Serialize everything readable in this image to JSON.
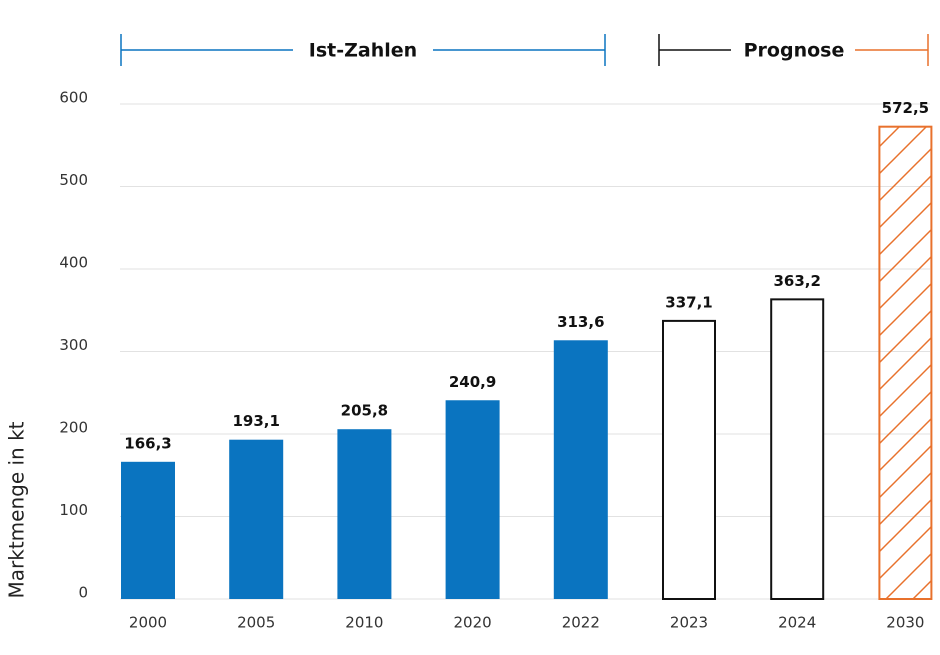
{
  "chart_data": {
    "type": "bar",
    "ylabel": "Marktmenge in kt",
    "annotations": [
      "Ist-Zahlen",
      "Prognose"
    ],
    "categories": [
      "2000",
      "2005",
      "2010",
      "2020",
      "2022",
      "2023",
      "2024",
      "2030"
    ],
    "values": [
      166.3,
      193.1,
      205.8,
      240.9,
      313.6,
      337.1,
      363.2,
      572.5
    ],
    "value_labels": [
      "166,3",
      "193,1",
      "205,8",
      "240,9",
      "313,6",
      "337,1",
      "363,2",
      "572,5"
    ],
    "colors": [
      "#0a74c0",
      "#0a74c0",
      "#0a74c0",
      "#0a74c0",
      "#0a74c0",
      "#111111",
      "#111111",
      "#e8712c"
    ],
    "styles": [
      "solid",
      "solid",
      "solid",
      "solid",
      "solid",
      "outline",
      "outline",
      "hatched"
    ],
    "ylim": [
      0,
      600
    ],
    "yticks": [
      0,
      100,
      200,
      300,
      400,
      500,
      600
    ],
    "grid": true
  }
}
